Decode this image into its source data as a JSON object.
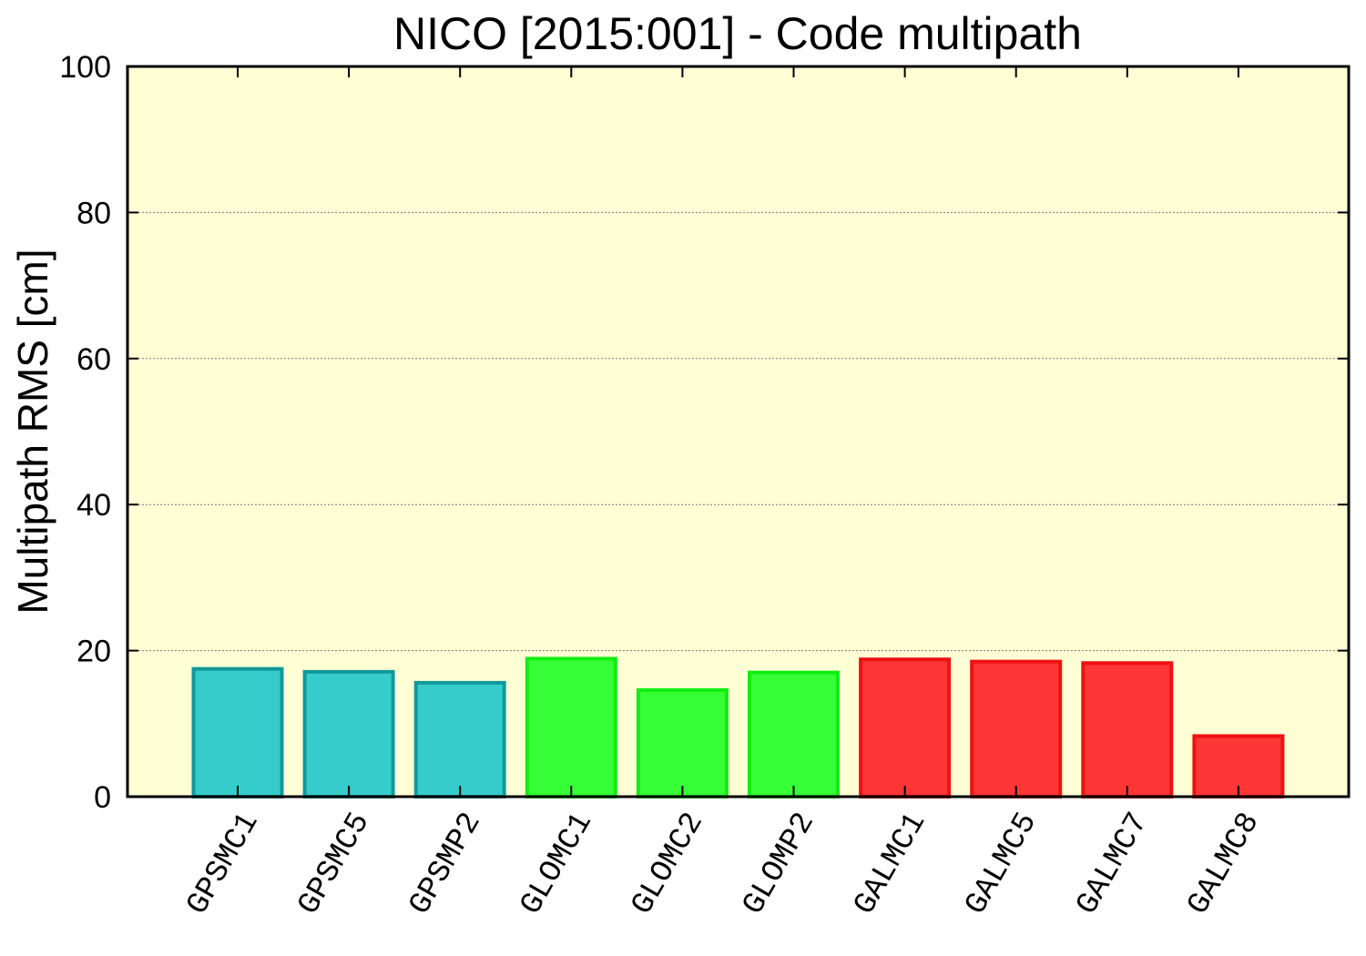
{
  "chart_data": {
    "type": "bar",
    "title": "NICO [2015:001] - Code multipath",
    "xlabel": "",
    "ylabel": "Multipath RMS [cm]",
    "ylim": [
      0,
      100
    ],
    "yticks": [
      0,
      20,
      40,
      60,
      80,
      100
    ],
    "grid": true,
    "legend": "none",
    "background": "#ffffd6",
    "categories": [
      "GPSMC1",
      "GPSMC5",
      "GPSMP2",
      "GLOMC1",
      "GLOMC2",
      "GLOMP2",
      "GALMC1",
      "GALMC5",
      "GALMC7",
      "GALMC8"
    ],
    "values": [
      17.5,
      17.1,
      15.6,
      18.9,
      14.6,
      17.0,
      18.8,
      18.5,
      18.3,
      8.3
    ],
    "colors": {
      "GPS": {
        "fill": "#36cccc",
        "stroke": "#119999"
      },
      "GLO": {
        "fill": "#36ff36",
        "stroke": "#11ee11"
      },
      "GAL": {
        "fill": "#ff3636",
        "stroke": "#ee1111"
      }
    },
    "bar_groups": [
      "GPS",
      "GPS",
      "GPS",
      "GLO",
      "GLO",
      "GLO",
      "GAL",
      "GAL",
      "GAL",
      "GAL"
    ]
  }
}
